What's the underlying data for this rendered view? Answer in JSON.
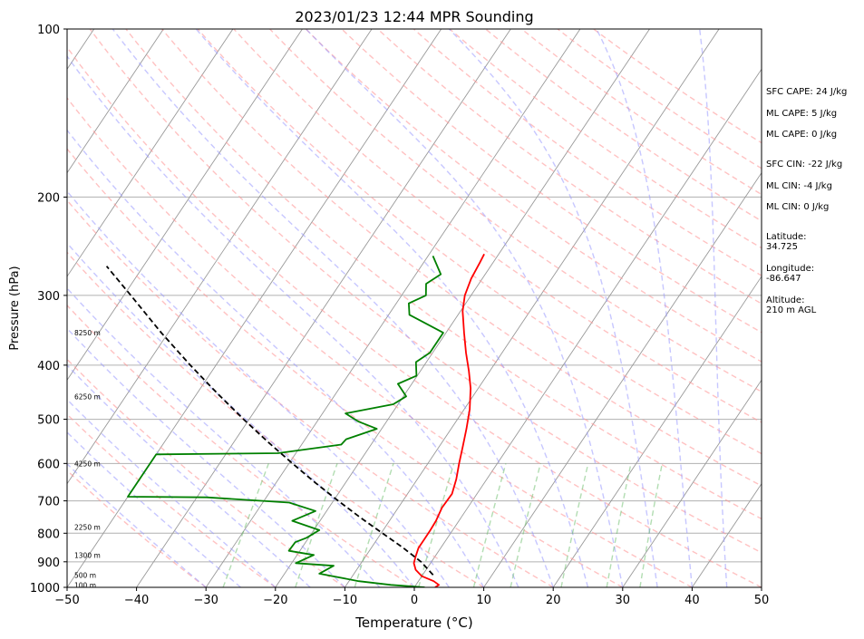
{
  "chart_data": {
    "type": "line",
    "title": "2023/01/23 12:44 MPR Sounding",
    "xlabel": "Temperature (°C)",
    "ylabel": "Pressure (hPa)",
    "xlim": [
      -50,
      50
    ],
    "ylim": [
      1000,
      100
    ],
    "y_scale": "log",
    "grid": true,
    "x_ticks": [
      -50,
      -40,
      -30,
      -20,
      -10,
      0,
      10,
      20,
      30,
      40,
      50
    ],
    "y_ticks": [
      1000,
      900,
      800,
      700,
      600,
      500,
      400,
      300,
      200,
      100
    ],
    "series": [
      {
        "color": "#ff0000",
        "points": [
          [
            1000,
            3.0
          ],
          [
            990,
            3.3
          ],
          [
            975,
            2.2
          ],
          [
            955,
            0.0
          ],
          [
            930,
            -1.5
          ],
          [
            905,
            -2.4
          ],
          [
            880,
            -2.8
          ],
          [
            850,
            -3.2
          ],
          [
            820,
            -3.2
          ],
          [
            790,
            -3.2
          ],
          [
            760,
            -3.3
          ],
          [
            720,
            -3.7
          ],
          [
            680,
            -3.6
          ],
          [
            640,
            -4.4
          ],
          [
            600,
            -5.5
          ],
          [
            560,
            -6.6
          ],
          [
            520,
            -7.8
          ],
          [
            480,
            -9.2
          ],
          [
            440,
            -11.1
          ],
          [
            410,
            -13.0
          ],
          [
            380,
            -15.2
          ],
          [
            350,
            -17.4
          ],
          [
            320,
            -19.7
          ],
          [
            300,
            -20.9
          ],
          [
            280,
            -21.6
          ],
          [
            262,
            -21.9
          ],
          [
            253,
            -22.1
          ]
        ]
      },
      {
        "color": "#008000",
        "points": [
          [
            1000,
            1.5
          ],
          [
            990,
            -3.6
          ],
          [
            975,
            -8.6
          ],
          [
            945,
            -15.0
          ],
          [
            915,
            -13.7
          ],
          [
            905,
            -19.4
          ],
          [
            875,
            -17.6
          ],
          [
            860,
            -21.6
          ],
          [
            830,
            -21.5
          ],
          [
            815,
            -20.3
          ],
          [
            790,
            -19.2
          ],
          [
            760,
            -24.0
          ],
          [
            730,
            -21.6
          ],
          [
            705,
            -26.2
          ],
          [
            690,
            -38.6
          ],
          [
            688,
            -50.0
          ],
          [
            600,
            -50.0
          ],
          [
            578,
            -50.0
          ],
          [
            575,
            -32.6
          ],
          [
            555,
            -24.3
          ],
          [
            543,
            -24.1
          ],
          [
            520,
            -20.7
          ],
          [
            505,
            -24.0
          ],
          [
            488,
            -26.7
          ],
          [
            470,
            -20.7
          ],
          [
            455,
            -19.6
          ],
          [
            432,
            -22.0
          ],
          [
            418,
            -20.1
          ],
          [
            395,
            -21.5
          ],
          [
            380,
            -20.4
          ],
          [
            350,
            -20.4
          ],
          [
            325,
            -27.0
          ],
          [
            310,
            -28.2
          ],
          [
            300,
            -26.5
          ],
          [
            286,
            -27.6
          ],
          [
            275,
            -26.4
          ],
          [
            255,
            -29.3
          ]
        ]
      },
      {
        "color": "#000000",
        "dash": "dashed",
        "points": [
          [
            950,
            1.5
          ],
          [
            900,
            -1.5
          ],
          [
            850,
            -5.4
          ],
          [
            800,
            -9.8
          ],
          [
            750,
            -14.5
          ],
          [
            700,
            -19.3
          ],
          [
            650,
            -24.3
          ],
          [
            600,
            -29.5
          ],
          [
            550,
            -35.0
          ],
          [
            500,
            -40.8
          ],
          [
            450,
            -47.0
          ],
          [
            400,
            -53.7
          ],
          [
            350,
            -61.0
          ],
          [
            300,
            -69.0
          ],
          [
            266,
            -75.3
          ]
        ]
      }
    ],
    "height_labels": [
      "8250 m",
      "6250 m",
      "4250 m",
      "2250 m",
      "1300 m",
      "500 m",
      "100 m"
    ],
    "stats": {
      "sfc_cape": "SFC CAPE: 24 J/kg",
      "ml_cape_1": "ML CAPE: 5 J/kg",
      "ml_cape_2": "ML CAPE: 0 J/kg",
      "sfc_cin": "SFC CIN: -22 J/kg",
      "ml_cin_1": "ML CIN: -4 J/kg",
      "ml_cin_2": "ML CIN: 0 J/kg",
      "latitude_label": "Latitude:",
      "latitude_value": "34.725",
      "longitude_label": "Longitude:",
      "longitude_value": "-86.647",
      "altitude_label": "Altitude:",
      "altitude_value": "210 m AGL"
    },
    "colors": {
      "temperature": "#ff0000",
      "dewpoint": "#008000",
      "parcel": "#000000",
      "dry_adiabat": "#ff9999",
      "moist_adiabat": "#9999ff",
      "mixing_ratio": "#66bb66",
      "isotherm": "#999999"
    }
  }
}
